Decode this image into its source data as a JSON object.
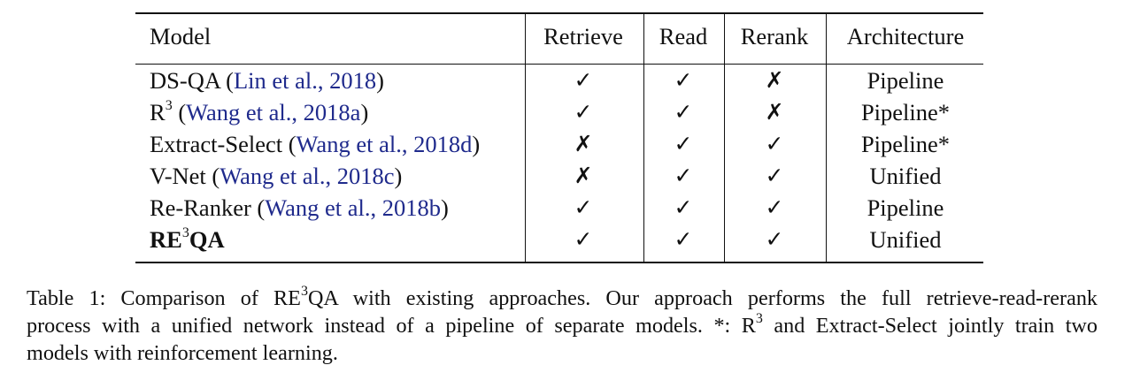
{
  "table": {
    "headers": {
      "model": "Model",
      "retrieve": "Retrieve",
      "read": "Read",
      "rerank": "Rerank",
      "architecture": "Architecture"
    },
    "rows": [
      {
        "name": "DS-QA ",
        "sup": "",
        "open": "(",
        "cite": "Lin et al., 2018",
        "close": ")",
        "retrieve": "✓",
        "read": "✓",
        "rerank": "✗",
        "architecture": "Pipeline"
      },
      {
        "name": "R",
        "sup": "3",
        "open": " (",
        "cite": "Wang et al., 2018a",
        "close": ")",
        "retrieve": "✓",
        "read": "✓",
        "rerank": "✗",
        "architecture": "Pipeline*"
      },
      {
        "name": "Extract-Select ",
        "sup": "",
        "open": "(",
        "cite": "Wang et al., 2018d",
        "close": ")",
        "retrieve": "✗",
        "read": "✓",
        "rerank": "✓",
        "architecture": "Pipeline*"
      },
      {
        "name": "V-Net ",
        "sup": "",
        "open": "(",
        "cite": "Wang et al., 2018c",
        "close": ")",
        "retrieve": "✗",
        "read": "✓",
        "rerank": "✓",
        "architecture": "Unified"
      },
      {
        "name": "Re-Ranker ",
        "sup": "",
        "open": "(",
        "cite": "Wang et al., 2018b",
        "close": ")",
        "retrieve": "✓",
        "read": "✓",
        "rerank": "✓",
        "architecture": "Pipeline"
      },
      {
        "name": "RE",
        "sup": "3",
        "name2": "QA",
        "retrieve": "✓",
        "read": "✓",
        "rerank": "✓",
        "architecture": "Unified"
      }
    ]
  },
  "caption": {
    "line1_a": "Table 1:  Comparison of RE",
    "line1_sup": "3",
    "line1_b": "QA with existing approaches.  Our approach performs the full retrieve-read-rerank",
    "line2_a": "process with a unified network instead of a pipeline of separate models.  *: R",
    "line2_sup": "3",
    "line2_b": " and Extract-Select jointly train two",
    "line3": "models with reinforcement learning."
  },
  "colors": {
    "citation": "#1f2a8c",
    "text": "#111111"
  }
}
